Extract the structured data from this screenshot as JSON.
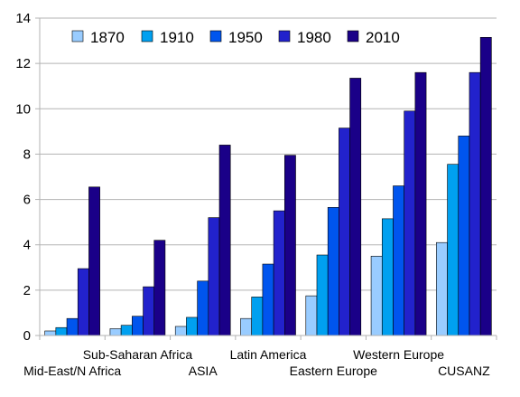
{
  "chart_data": {
    "type": "bar",
    "categories": [
      "Mid-East/N Africa",
      "Sub-Saharan Africa",
      "ASIA",
      "Latin America",
      "Eastern Europe",
      "Western Europe",
      "CUSANZ"
    ],
    "series": [
      {
        "name": "1870",
        "color": "#99ccff",
        "values": [
          0.2,
          0.3,
          0.4,
          0.75,
          1.75,
          3.5,
          4.1
        ]
      },
      {
        "name": "1910",
        "color": "#00a0f0",
        "values": [
          0.35,
          0.45,
          0.8,
          1.7,
          3.55,
          5.15,
          7.55
        ]
      },
      {
        "name": "1950",
        "color": "#0055ee",
        "values": [
          0.75,
          0.85,
          2.4,
          3.15,
          5.65,
          6.6,
          8.8
        ]
      },
      {
        "name": "1980",
        "color": "#2222cc",
        "values": [
          2.95,
          2.15,
          5.2,
          5.5,
          9.15,
          9.9,
          11.6
        ]
      },
      {
        "name": "2010",
        "color": "#1a0088",
        "values": [
          6.55,
          4.2,
          8.4,
          7.95,
          11.35,
          11.6,
          13.15
        ]
      }
    ],
    "ylim": [
      0,
      14
    ],
    "yticks": [
      "0",
      "2",
      "4",
      "6",
      "8",
      "10",
      "12",
      "14"
    ],
    "grid": true,
    "legend_position": "top-left",
    "title": "",
    "xlabel": "",
    "ylabel": ""
  }
}
